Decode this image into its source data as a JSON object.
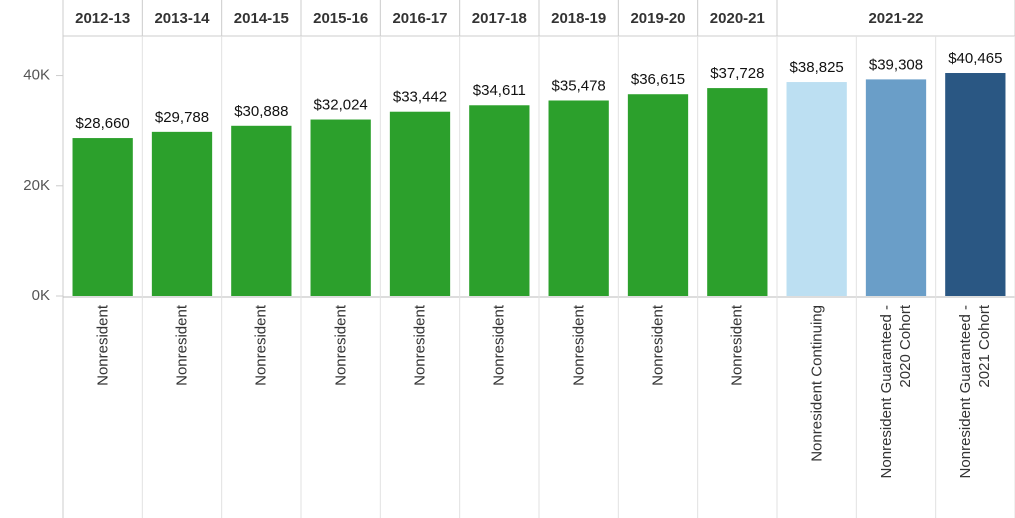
{
  "chart_data": {
    "type": "bar",
    "groups": [
      {
        "name": "2012-13",
        "categories": [
          "Nonresident"
        ],
        "values": [
          28660
        ],
        "value_labels": [
          "$28,660"
        ],
        "colors": [
          "#2ca02c"
        ]
      },
      {
        "name": "2013-14",
        "categories": [
          "Nonresident"
        ],
        "values": [
          29788
        ],
        "value_labels": [
          "$29,788"
        ],
        "colors": [
          "#2ca02c"
        ]
      },
      {
        "name": "2014-15",
        "categories": [
          "Nonresident"
        ],
        "values": [
          30888
        ],
        "value_labels": [
          "$30,888"
        ],
        "colors": [
          "#2ca02c"
        ]
      },
      {
        "name": "2015-16",
        "categories": [
          "Nonresident"
        ],
        "values": [
          32024
        ],
        "value_labels": [
          "$32,024"
        ],
        "colors": [
          "#2ca02c"
        ]
      },
      {
        "name": "2016-17",
        "categories": [
          "Nonresident"
        ],
        "values": [
          33442
        ],
        "value_labels": [
          "$33,442"
        ],
        "colors": [
          "#2ca02c"
        ]
      },
      {
        "name": "2017-18",
        "categories": [
          "Nonresident"
        ],
        "values": [
          34611
        ],
        "value_labels": [
          "$34,611"
        ],
        "colors": [
          "#2ca02c"
        ]
      },
      {
        "name": "2018-19",
        "categories": [
          "Nonresident"
        ],
        "values": [
          35478
        ],
        "value_labels": [
          "$35,478"
        ],
        "colors": [
          "#2ca02c"
        ]
      },
      {
        "name": "2019-20",
        "categories": [
          "Nonresident"
        ],
        "values": [
          36615
        ],
        "value_labels": [
          "$36,615"
        ],
        "colors": [
          "#2ca02c"
        ]
      },
      {
        "name": "2020-21",
        "categories": [
          "Nonresident"
        ],
        "values": [
          37728
        ],
        "value_labels": [
          "$37,728"
        ],
        "colors": [
          "#2ca02c"
        ]
      },
      {
        "name": "2021-22",
        "categories": [
          "Nonresident Continuing",
          "Nonresident Guaranteed - 2020 Cohort",
          "Nonresident Guaranteed - 2021 Cohort"
        ],
        "values": [
          38825,
          39308,
          40465
        ],
        "value_labels": [
          "$38,825",
          "$39,308",
          "$40,465"
        ],
        "colors": [
          "#bcdff2",
          "#6a9ec8",
          "#2a5783"
        ]
      }
    ],
    "ylim": [
      0,
      47000
    ],
    "yticks": [
      {
        "value": 0,
        "label": "0K"
      },
      {
        "value": 20000,
        "label": "20K"
      },
      {
        "value": 40000,
        "label": "40K"
      }
    ],
    "grid": false
  }
}
